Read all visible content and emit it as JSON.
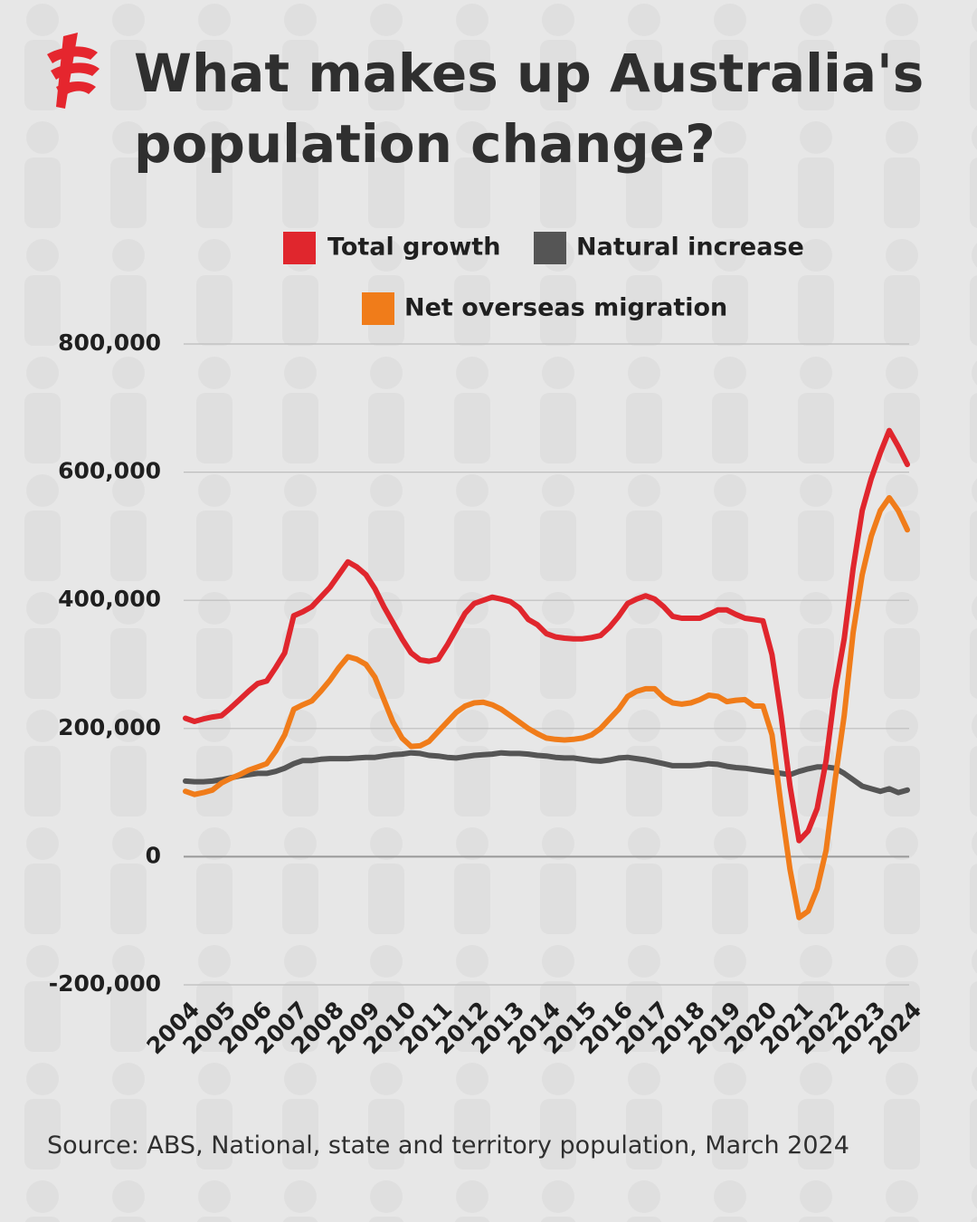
{
  "chart_data": {
    "type": "line",
    "title": "What makes up Australia's population change?",
    "source": "Source: ABS, National, state and territory population, March 2024",
    "categories": [
      "2004",
      null,
      null,
      null,
      "2005",
      null,
      null,
      null,
      "2006",
      null,
      null,
      null,
      "2007",
      null,
      null,
      null,
      "2008",
      null,
      null,
      null,
      "2009",
      null,
      null,
      null,
      "2010",
      null,
      null,
      null,
      "2011",
      null,
      null,
      null,
      "2012",
      null,
      null,
      null,
      "2013",
      null,
      null,
      null,
      "2014",
      null,
      null,
      null,
      "2015",
      null,
      null,
      null,
      "2016",
      null,
      null,
      null,
      "2017",
      null,
      null,
      null,
      "2018",
      null,
      null,
      null,
      "2019",
      null,
      null,
      null,
      "2020",
      null,
      null,
      null,
      "2021",
      null,
      null,
      null,
      "2022",
      null,
      null,
      null,
      "2023",
      null,
      null,
      null,
      "2024"
    ],
    "series": [
      {
        "name": "Total growth",
        "color": "#e0262d",
        "values": [
          216000,
          211000,
          215000,
          218000,
          220000,
          232000,
          245000,
          258000,
          270000,
          274000,
          295000,
          318000,
          376000,
          382000,
          390000,
          405000,
          420000,
          440000,
          460000,
          452000,
          440000,
          418000,
          390000,
          365000,
          340000,
          318000,
          307000,
          305000,
          308000,
          330000,
          355000,
          380000,
          395000,
          400000,
          405000,
          402000,
          398000,
          388000,
          370000,
          362000,
          348000,
          343000,
          341000,
          340000,
          340000,
          342000,
          345000,
          358000,
          375000,
          395000,
          402000,
          407000,
          402000,
          390000,
          375000,
          372000,
          372000,
          372000,
          378000,
          385000,
          385000,
          378000,
          372000,
          370000,
          368000,
          315000,
          220000,
          110000,
          25000,
          40000,
          75000,
          150000,
          260000,
          340000,
          450000,
          540000,
          590000,
          630000,
          665000,
          640000,
          612000
        ]
      },
      {
        "name": "Natural increase",
        "color": "#555555",
        "values": [
          118000,
          117000,
          117000,
          118000,
          120000,
          123000,
          126000,
          128000,
          130000,
          130000,
          133000,
          138000,
          145000,
          150000,
          150000,
          152000,
          153000,
          153000,
          153000,
          154000,
          155000,
          155000,
          157000,
          159000,
          160000,
          162000,
          161000,
          158000,
          157000,
          155000,
          154000,
          156000,
          158000,
          159000,
          160000,
          162000,
          161000,
          161000,
          160000,
          158000,
          157000,
          155000,
          154000,
          154000,
          152000,
          150000,
          149000,
          151000,
          154000,
          155000,
          153000,
          151000,
          148000,
          145000,
          142000,
          142000,
          142000,
          143000,
          145000,
          144000,
          141000,
          139000,
          138000,
          136000,
          134000,
          132000,
          130000,
          128000,
          133000,
          137000,
          140000,
          140000,
          138000,
          130000,
          120000,
          110000,
          106000,
          102000,
          106000,
          100000,
          104000
        ]
      },
      {
        "name": "Net overseas migration",
        "color": "#f07c1a",
        "values": [
          102000,
          97000,
          100000,
          104000,
          115000,
          122000,
          128000,
          135000,
          140000,
          145000,
          165000,
          190000,
          230000,
          237000,
          243000,
          258000,
          275000,
          295000,
          312000,
          308000,
          300000,
          280000,
          245000,
          210000,
          185000,
          172000,
          173000,
          180000,
          195000,
          210000,
          225000,
          235000,
          240000,
          241000,
          237000,
          230000,
          220000,
          210000,
          200000,
          192000,
          185000,
          183000,
          182000,
          183000,
          185000,
          190000,
          200000,
          215000,
          230000,
          250000,
          258000,
          262000,
          262000,
          248000,
          240000,
          238000,
          240000,
          245000,
          252000,
          250000,
          242000,
          244000,
          245000,
          235000,
          235000,
          190000,
          80000,
          -20000,
          -95000,
          -85000,
          -50000,
          10000,
          120000,
          220000,
          350000,
          440000,
          500000,
          540000,
          560000,
          540000,
          510000
        ]
      }
    ],
    "ylim": [
      -200000,
      800000
    ],
    "yticks": [
      {
        "value": -200000,
        "label": "-200,000"
      },
      0,
      {
        "value": 200000,
        "label": "200,000"
      },
      {
        "value": 400000,
        "label": "400,000"
      },
      {
        "value": 600000,
        "label": "600,000"
      },
      {
        "value": 800000,
        "label": "800,000"
      }
    ],
    "grid": true
  }
}
